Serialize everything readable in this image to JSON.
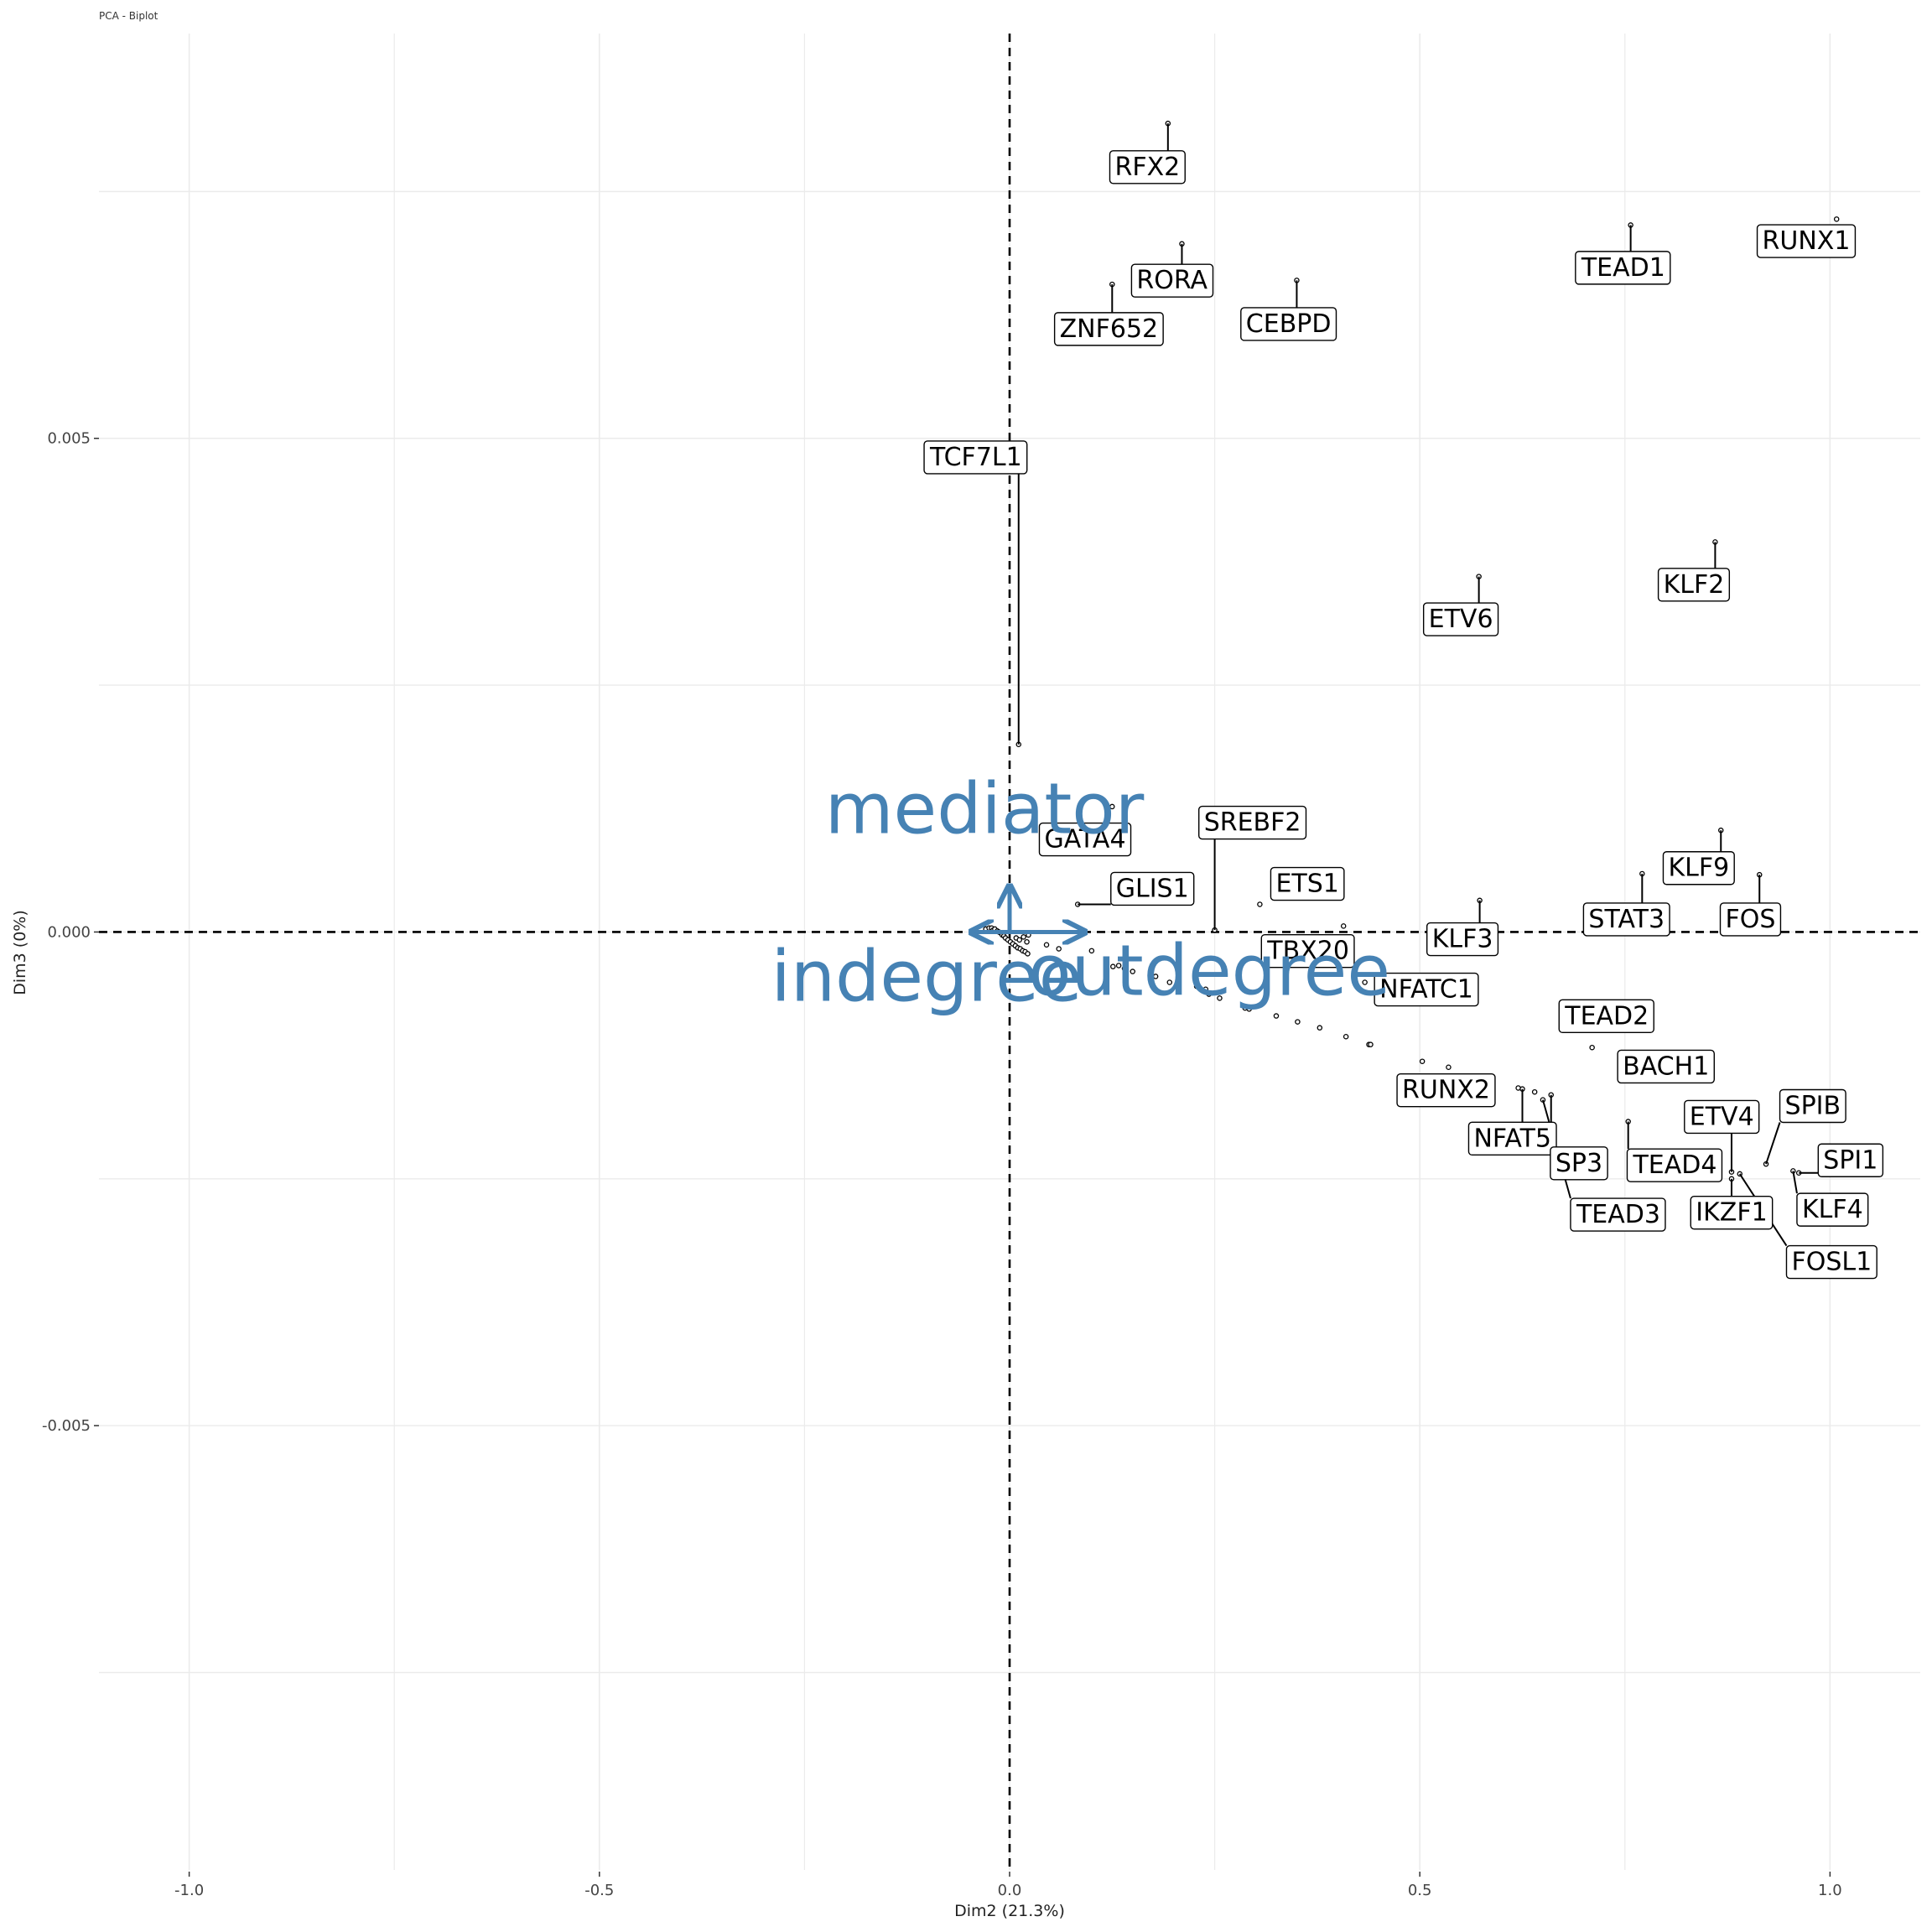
{
  "chart_data": {
    "type": "scatter",
    "title": "PCA - Biplot",
    "xlabel": "Dim2 (21.3%)",
    "ylabel": "Dim3 (0%)",
    "xlim": [
      -1.11,
      1.11
    ],
    "ylim": [
      -0.0095,
      0.0091
    ],
    "x_ticks": [
      -1.0,
      -0.5,
      0.0,
      0.5,
      1.0
    ],
    "x_tick_labels": [
      "-1.0",
      "-0.5",
      "0.0",
      "0.5",
      "1.0"
    ],
    "y_ticks": [
      -0.005,
      0.0,
      0.005
    ],
    "y_tick_labels": [
      "-0.005",
      "0.000",
      "0.005"
    ],
    "grid": true,
    "reference_lines": {
      "x": 0,
      "y": 0,
      "style": "dashed"
    },
    "colors": {
      "variable_arrows": "#4682b4",
      "points": "#000000",
      "grid": "#ebebeb"
    },
    "labeled_points": [
      {
        "name": "RFX2",
        "x": 0.193,
        "y": 0.00819,
        "label_x": 0.168,
        "label_y": 0.00776
      },
      {
        "name": "RUNX1",
        "x": 1.008,
        "y": 0.00722,
        "label_x": 0.971,
        "label_y": 0.00701
      },
      {
        "name": "TEAD1",
        "x": 0.757,
        "y": 0.00716,
        "label_x": 0.748,
        "label_y": 0.00674
      },
      {
        "name": "RORA",
        "x": 0.21,
        "y": 0.00697,
        "label_x": 0.198,
        "label_y": 0.00661
      },
      {
        "name": "CEBPD",
        "x": 0.35,
        "y": 0.0066,
        "label_x": 0.34,
        "label_y": 0.00617
      },
      {
        "name": "ZNF652",
        "x": 0.125,
        "y": 0.00656,
        "label_x": 0.121,
        "label_y": 0.00612
      },
      {
        "name": "TCF7L1",
        "x": 0.011,
        "y": 0.0019,
        "label_x": -0.041,
        "label_y": 0.00482
      },
      {
        "name": "KLF2",
        "x": 0.86,
        "y": 0.00395,
        "label_x": 0.834,
        "label_y": 0.00353
      },
      {
        "name": "ETV6",
        "x": 0.572,
        "y": 0.0036,
        "label_x": 0.55,
        "label_y": 0.00318
      },
      {
        "name": "SREBF2",
        "x": 0.25,
        "y": 2e-05,
        "label_x": 0.296,
        "label_y": 0.00112
      },
      {
        "name": "GATA4",
        "x": 0.125,
        "y": 0.00127,
        "label_x": 0.092,
        "label_y": 0.00095
      },
      {
        "name": "GLIS1",
        "x": 0.083,
        "y": 0.00028,
        "label_x": 0.174,
        "label_y": 0.00045
      },
      {
        "name": "ETS1",
        "x": 0.305,
        "y": 0.00028,
        "label_x": 0.363,
        "label_y": 0.0005
      },
      {
        "name": "KLF9",
        "x": 0.867,
        "y": 0.00103,
        "label_x": 0.84,
        "label_y": 0.00066
      },
      {
        "name": "STAT3",
        "x": 0.771,
        "y": 0.00059,
        "label_x": 0.752,
        "label_y": 0.00014
      },
      {
        "name": "FOS",
        "x": 0.914,
        "y": 0.00058,
        "label_x": 0.903,
        "label_y": 0.00014
      },
      {
        "name": "KLF3",
        "x": 0.573,
        "y": 0.00032,
        "label_x": 0.552,
        "label_y": -6e-05
      },
      {
        "name": "TBX20",
        "x": 0.407,
        "y": 6e-05,
        "label_x": 0.364,
        "label_y": -0.00018
      },
      {
        "name": "NFATC1",
        "x": 0.433,
        "y": -0.00051,
        "label_x": 0.508,
        "label_y": -0.00057
      },
      {
        "name": "TEAD2",
        "x": 0.71,
        "y": -0.00117,
        "label_x": 0.728,
        "label_y": -0.00084
      },
      {
        "name": "BACH1",
        "x": 0.754,
        "y": -0.0015,
        "label_x": 0.8,
        "label_y": -0.00135
      },
      {
        "name": "RUNX2",
        "x": 0.535,
        "y": -0.00137,
        "label_x": 0.532,
        "label_y": -0.00159
      },
      {
        "name": "SPIB",
        "x": 0.922,
        "y": -0.00235,
        "label_x": 0.979,
        "label_y": -0.00175
      },
      {
        "name": "ETV4",
        "x": 0.88,
        "y": -0.00243,
        "label_x": 0.868,
        "label_y": -0.00186
      },
      {
        "name": "NFAT5",
        "x": 0.625,
        "y": -0.00159,
        "label_x": 0.613,
        "label_y": -0.00208
      },
      {
        "name": "SPI1",
        "x": 0.962,
        "y": -0.00244,
        "label_x": 1.025,
        "label_y": -0.0023
      },
      {
        "name": "SP3",
        "x": 0.66,
        "y": -0.00165,
        "label_x": 0.694,
        "label_y": -0.00233
      },
      {
        "name": "TEAD4",
        "x": 0.754,
        "y": -0.00192,
        "label_x": 0.811,
        "label_y": -0.00235
      },
      {
        "name": "KLF4",
        "x": 0.955,
        "y": -0.00242,
        "label_x": 1.003,
        "label_y": -0.0028
      },
      {
        "name": "IKZF1",
        "x": 0.88,
        "y": -0.0025,
        "label_x": 0.88,
        "label_y": -0.00283
      },
      {
        "name": "TEAD3",
        "x": 0.65,
        "y": -0.0017,
        "label_x": 0.742,
        "label_y": -0.00285
      },
      {
        "name": "FOSL1",
        "x": 0.89,
        "y": -0.00245,
        "label_x": 1.002,
        "label_y": -0.00333
      }
    ],
    "unlabeled_points": [
      [
        -0.029,
        3e-05
      ],
      [
        -0.025,
        4e-05
      ],
      [
        -0.022,
        4e-05
      ],
      [
        -0.02,
        2e-05
      ],
      [
        -0.018,
        3e-05
      ],
      [
        -0.015,
        1e-05
      ],
      [
        -0.013,
        0.0
      ],
      [
        -0.011,
        -1e-05
      ],
      [
        -0.009,
        -3e-05
      ],
      [
        -0.007,
        -4e-05
      ],
      [
        -0.005,
        -6e-05
      ],
      [
        -0.002,
        -8e-05
      ],
      [
        0.001,
        -0.0001
      ],
      [
        0.004,
        -0.00012
      ],
      [
        0.007,
        -0.00014
      ],
      [
        0.01,
        -0.00016
      ],
      [
        0.013,
        -0.00017
      ],
      [
        0.016,
        -0.00019
      ],
      [
        0.019,
        -0.0002
      ],
      [
        0.022,
        -0.00022
      ],
      [
        0.008,
        -6e-05
      ],
      [
        0.012,
        -8e-05
      ],
      [
        0.017,
        -5e-05
      ],
      [
        0.021,
        -0.0001
      ],
      [
        0.023,
        -3e-05
      ],
      [
        0.045,
        -0.00013
      ],
      [
        0.06,
        -0.00017
      ],
      [
        0.1,
        -0.00019
      ],
      [
        0.118,
        -0.00034
      ],
      [
        0.126,
        -0.00035
      ],
      [
        0.133,
        -0.00034
      ],
      [
        0.14,
        -0.00037
      ],
      [
        0.15,
        -0.0004
      ],
      [
        0.178,
        -0.00045
      ],
      [
        0.195,
        -0.00051
      ],
      [
        0.228,
        -0.00055
      ],
      [
        0.239,
        -0.00058
      ],
      [
        0.243,
        -0.00063
      ],
      [
        0.256,
        -0.00067
      ],
      [
        0.287,
        -0.00077
      ],
      [
        0.292,
        -0.00078
      ],
      [
        0.325,
        -0.00085
      ],
      [
        0.351,
        -0.00091
      ],
      [
        0.378,
        -0.00097
      ],
      [
        0.41,
        -0.00106
      ],
      [
        0.438,
        -0.00114
      ],
      [
        0.44,
        -0.00114
      ],
      [
        0.503,
        -0.00131
      ],
      [
        0.62,
        -0.00158
      ],
      [
        0.64,
        -0.00162
      ],
      [
        0.28,
        -0.00038
      ]
    ],
    "variable_arrows": [
      {
        "name": "mediator",
        "x": 0.0,
        "y": 0.00045
      },
      {
        "name": "indegree",
        "x": -0.045,
        "y": 0.0
      },
      {
        "name": "outdegree",
        "x": 0.09,
        "y": 0.0
      }
    ]
  }
}
